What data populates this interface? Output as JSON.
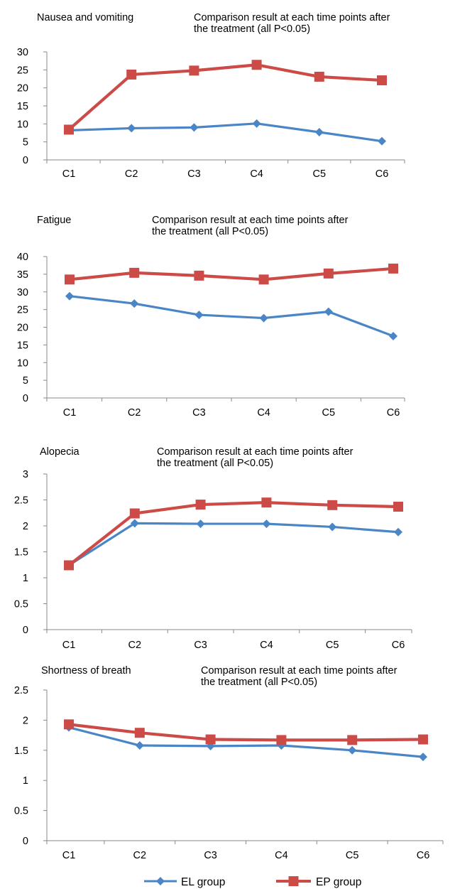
{
  "chart_data": [
    {
      "type": "line",
      "title": "Nausea and vomiting",
      "annotation": [
        "Comparison result at each time points after",
        "the treatment (all P<0.05)"
      ],
      "categories": [
        "C1",
        "C2",
        "C3",
        "C4",
        "C5",
        "C6"
      ],
      "series": [
        {
          "name": "EL group",
          "values": [
            8.2,
            8.8,
            9.0,
            10.1,
            7.7,
            5.2
          ]
        },
        {
          "name": "EP group",
          "values": [
            8.4,
            23.7,
            24.8,
            26.4,
            23.1,
            22.1
          ]
        }
      ],
      "ylim": [
        0,
        30
      ],
      "yticks": [
        0,
        5,
        10,
        15,
        20,
        25,
        30
      ],
      "grid": false
    },
    {
      "type": "line",
      "title": "Fatigue",
      "annotation": [
        "Comparison result at each time points after",
        "the treatment (all P<0.05)"
      ],
      "categories": [
        "C1",
        "C2",
        "C3",
        "C4",
        "C5",
        "C6"
      ],
      "series": [
        {
          "name": "EL group",
          "values": [
            28.8,
            26.7,
            23.5,
            22.6,
            24.4,
            17.5
          ]
        },
        {
          "name": "EP group",
          "values": [
            33.5,
            35.4,
            34.6,
            33.5,
            35.2,
            36.6
          ]
        }
      ],
      "ylim": [
        0,
        40
      ],
      "yticks": [
        0,
        5,
        10,
        15,
        20,
        25,
        30,
        35,
        40
      ],
      "grid": false
    },
    {
      "type": "line",
      "title": "Alopecia",
      "annotation": [
        "Comparison result at each time points after",
        "the treatment (all P<0.05)"
      ],
      "categories": [
        "C1",
        "C2",
        "C3",
        "C4",
        "C5",
        "C6"
      ],
      "series": [
        {
          "name": "EL group",
          "values": [
            1.24,
            2.05,
            2.04,
            2.04,
            1.98,
            1.88
          ]
        },
        {
          "name": "EP group",
          "values": [
            1.24,
            2.24,
            2.41,
            2.45,
            2.4,
            2.37
          ]
        }
      ],
      "ylim": [
        0,
        3
      ],
      "yticks": [
        "0",
        "0.5",
        "1",
        "1.5",
        "2",
        "2.5",
        "3"
      ],
      "grid": false
    },
    {
      "type": "line",
      "title": "Shortness of breath",
      "annotation": [
        "Comparison result at each time points after",
        "the treatment (all P<0.05)"
      ],
      "categories": [
        "C1",
        "C2",
        "C3",
        "C4",
        "C5",
        "C6"
      ],
      "series": [
        {
          "name": "EL group",
          "values": [
            1.88,
            1.58,
            1.57,
            1.58,
            1.5,
            1.39
          ]
        },
        {
          "name": "EP group",
          "values": [
            1.93,
            1.79,
            1.68,
            1.67,
            1.67,
            1.68
          ]
        }
      ],
      "ylim": [
        0,
        2.5
      ],
      "yticks": [
        "0",
        "0.5",
        "1",
        "1.5",
        "2",
        "2.5"
      ],
      "grid": false
    }
  ],
  "legend": {
    "placement": "bottom",
    "items": [
      {
        "label": "EL group",
        "color": "#4a86c6",
        "marker": "diamond"
      },
      {
        "label": "EP group",
        "color": "#cc4b47",
        "marker": "square"
      }
    ]
  },
  "colors": {
    "el": "#4a86c6",
    "ep": "#cc4b47",
    "axis": "#8a8a8a"
  }
}
